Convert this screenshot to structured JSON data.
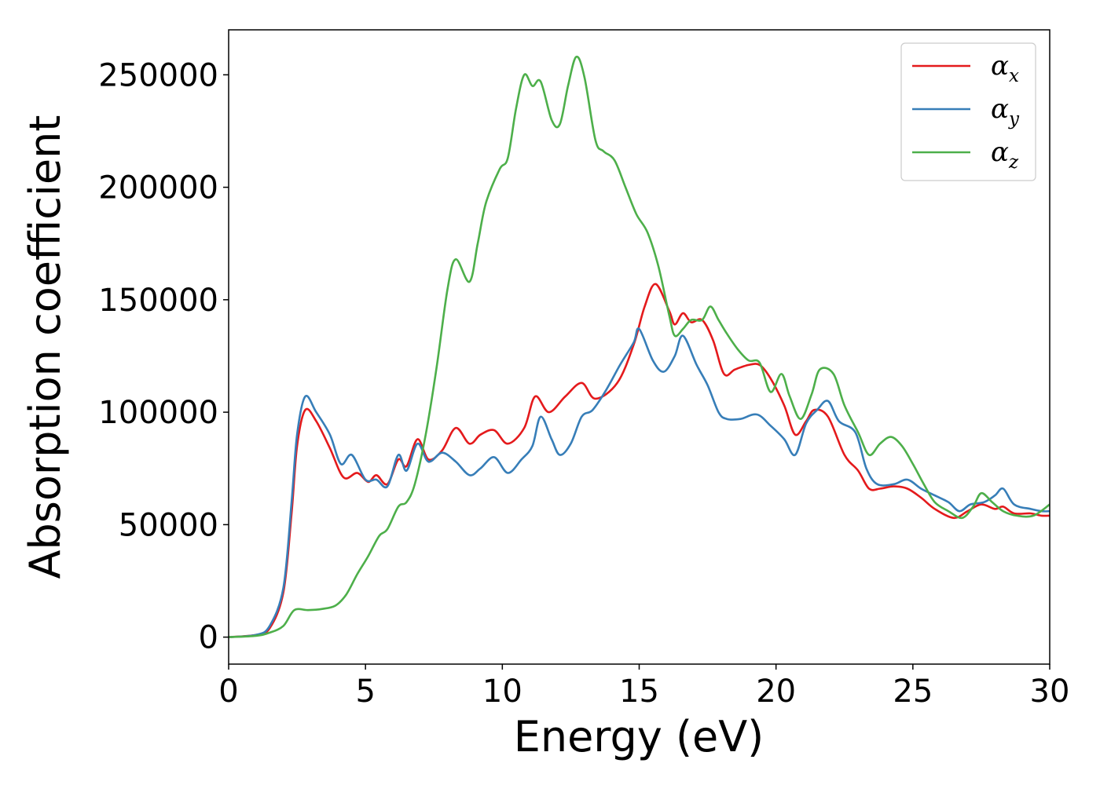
{
  "chart_data": {
    "type": "line",
    "title": "",
    "xlabel": "Energy (eV)",
    "ylabel": "Absorption coefficient",
    "xlim": [
      0,
      30
    ],
    "ylim": [
      -12000,
      270000
    ],
    "xticks": [
      0,
      5,
      10,
      15,
      20,
      25,
      30
    ],
    "xtick_labels": [
      "0",
      "5",
      "10",
      "15",
      "20",
      "25",
      "30"
    ],
    "yticks": [
      0,
      50000,
      100000,
      150000,
      200000,
      250000
    ],
    "ytick_labels": [
      "0",
      "50000",
      "100000",
      "150000",
      "200000",
      "250000"
    ],
    "grid": false,
    "legend": {
      "position": "top-right",
      "entries": [
        {
          "series_index": 0,
          "symbol": "α",
          "subscript": "x"
        },
        {
          "series_index": 1,
          "symbol": "α",
          "subscript": "y"
        },
        {
          "series_index": 2,
          "symbol": "α",
          "subscript": "z"
        }
      ]
    },
    "series": [
      {
        "name": "α_x",
        "color": "#e41a1c",
        "points": [
          [
            0,
            0
          ],
          [
            1,
            1000
          ],
          [
            1.5,
            4000
          ],
          [
            2,
            20000
          ],
          [
            2.3,
            55000
          ],
          [
            2.5,
            85000
          ],
          [
            2.8,
            101000
          ],
          [
            3.2,
            96000
          ],
          [
            3.7,
            84000
          ],
          [
            4.2,
            71000
          ],
          [
            4.7,
            73000
          ],
          [
            5.1,
            69000
          ],
          [
            5.4,
            72000
          ],
          [
            5.8,
            68000
          ],
          [
            6.2,
            79000
          ],
          [
            6.5,
            76000
          ],
          [
            6.9,
            88000
          ],
          [
            7.3,
            79000
          ],
          [
            7.8,
            83000
          ],
          [
            8.3,
            93000
          ],
          [
            8.8,
            86000
          ],
          [
            9.2,
            90000
          ],
          [
            9.7,
            92000
          ],
          [
            10.2,
            86000
          ],
          [
            10.8,
            93000
          ],
          [
            11.2,
            107000
          ],
          [
            11.7,
            100000
          ],
          [
            12.3,
            107000
          ],
          [
            12.9,
            113000
          ],
          [
            13.4,
            106000
          ],
          [
            14.2,
            113000
          ],
          [
            14.8,
            130000
          ],
          [
            15.2,
            147000
          ],
          [
            15.6,
            157000
          ],
          [
            16.1,
            145000
          ],
          [
            16.3,
            139000
          ],
          [
            16.6,
            144000
          ],
          [
            16.9,
            140000
          ],
          [
            17.3,
            141000
          ],
          [
            17.7,
            132000
          ],
          [
            18.1,
            117000
          ],
          [
            18.5,
            119000
          ],
          [
            19,
            121000
          ],
          [
            19.4,
            121000
          ],
          [
            19.8,
            115000
          ],
          [
            20.3,
            103000
          ],
          [
            20.7,
            90000
          ],
          [
            21.1,
            96000
          ],
          [
            21.4,
            101000
          ],
          [
            21.9,
            98000
          ],
          [
            22.5,
            81000
          ],
          [
            23,
            74000
          ],
          [
            23.4,
            66000
          ],
          [
            23.8,
            66000
          ],
          [
            24.3,
            67000
          ],
          [
            24.8,
            66000
          ],
          [
            25.3,
            62000
          ],
          [
            25.8,
            57000
          ],
          [
            26.5,
            53000
          ],
          [
            27,
            56000
          ],
          [
            27.5,
            59000
          ],
          [
            28,
            57000
          ],
          [
            28.3,
            58000
          ],
          [
            28.7,
            55000
          ],
          [
            29.3,
            55000
          ],
          [
            29.7,
            54000
          ],
          [
            30,
            54000
          ]
        ]
      },
      {
        "name": "α_y",
        "color": "#377eb8",
        "points": [
          [
            0,
            0
          ],
          [
            1,
            1000
          ],
          [
            1.5,
            5000
          ],
          [
            2,
            22000
          ],
          [
            2.3,
            60000
          ],
          [
            2.5,
            90000
          ],
          [
            2.8,
            107000
          ],
          [
            3.2,
            100000
          ],
          [
            3.7,
            90000
          ],
          [
            4.1,
            77000
          ],
          [
            4.5,
            81000
          ],
          [
            5,
            70000
          ],
          [
            5.4,
            70000
          ],
          [
            5.8,
            67000
          ],
          [
            6.2,
            81000
          ],
          [
            6.5,
            74000
          ],
          [
            6.9,
            86000
          ],
          [
            7.3,
            78000
          ],
          [
            7.8,
            82000
          ],
          [
            8.3,
            78000
          ],
          [
            8.8,
            72000
          ],
          [
            9.2,
            75000
          ],
          [
            9.7,
            80000
          ],
          [
            10.2,
            73000
          ],
          [
            10.7,
            79000
          ],
          [
            11.1,
            85000
          ],
          [
            11.4,
            98000
          ],
          [
            11.8,
            88000
          ],
          [
            12.1,
            81000
          ],
          [
            12.5,
            86000
          ],
          [
            12.9,
            98000
          ],
          [
            13.3,
            101000
          ],
          [
            13.8,
            110000
          ],
          [
            14.3,
            121000
          ],
          [
            14.8,
            131000
          ],
          [
            15,
            137000
          ],
          [
            15.5,
            123000
          ],
          [
            15.9,
            118000
          ],
          [
            16.3,
            125000
          ],
          [
            16.6,
            134000
          ],
          [
            17.1,
            121000
          ],
          [
            17.5,
            112000
          ],
          [
            17.9,
            100000
          ],
          [
            18.2,
            97000
          ],
          [
            18.7,
            97000
          ],
          [
            19.3,
            99000
          ],
          [
            19.8,
            94000
          ],
          [
            20.3,
            88000
          ],
          [
            20.7,
            81000
          ],
          [
            21.1,
            95000
          ],
          [
            21.5,
            101000
          ],
          [
            21.9,
            105000
          ],
          [
            22.3,
            96000
          ],
          [
            22.9,
            91000
          ],
          [
            23.3,
            75000
          ],
          [
            23.7,
            68000
          ],
          [
            24.3,
            68000
          ],
          [
            24.8,
            70000
          ],
          [
            25.3,
            66000
          ],
          [
            25.8,
            63000
          ],
          [
            26.3,
            60000
          ],
          [
            26.7,
            56000
          ],
          [
            27.1,
            59000
          ],
          [
            27.6,
            60000
          ],
          [
            28,
            63000
          ],
          [
            28.3,
            66000
          ],
          [
            28.7,
            59000
          ],
          [
            29.3,
            57000
          ],
          [
            29.7,
            56000
          ],
          [
            30,
            56000
          ]
        ]
      },
      {
        "name": "α_z",
        "color": "#4daf4a",
        "points": [
          [
            0,
            0
          ],
          [
            1,
            600
          ],
          [
            1.5,
            2000
          ],
          [
            2,
            5000
          ],
          [
            2.4,
            12000
          ],
          [
            2.9,
            12000
          ],
          [
            3.4,
            12500
          ],
          [
            3.9,
            14000
          ],
          [
            4.3,
            19000
          ],
          [
            4.7,
            28000
          ],
          [
            5.1,
            36000
          ],
          [
            5.5,
            45000
          ],
          [
            5.8,
            48000
          ],
          [
            6.2,
            58000
          ],
          [
            6.5,
            60000
          ],
          [
            6.8,
            68000
          ],
          [
            7.2,
            90000
          ],
          [
            7.6,
            120000
          ],
          [
            8,
            155000
          ],
          [
            8.3,
            168000
          ],
          [
            8.8,
            158000
          ],
          [
            9.1,
            175000
          ],
          [
            9.4,
            193000
          ],
          [
            9.9,
            208000
          ],
          [
            10.2,
            213000
          ],
          [
            10.5,
            235000
          ],
          [
            10.8,
            250000
          ],
          [
            11.1,
            245000
          ],
          [
            11.4,
            247000
          ],
          [
            11.8,
            230000
          ],
          [
            12.1,
            228000
          ],
          [
            12.4,
            245000
          ],
          [
            12.7,
            258000
          ],
          [
            13,
            249000
          ],
          [
            13.4,
            221000
          ],
          [
            13.7,
            216000
          ],
          [
            14.1,
            212000
          ],
          [
            14.5,
            200000
          ],
          [
            14.9,
            188000
          ],
          [
            15.3,
            180000
          ],
          [
            15.7,
            165000
          ],
          [
            16.1,
            143000
          ],
          [
            16.3,
            134000
          ],
          [
            16.6,
            137000
          ],
          [
            16.9,
            141000
          ],
          [
            17.3,
            141000
          ],
          [
            17.6,
            147000
          ],
          [
            17.9,
            141000
          ],
          [
            18.2,
            135000
          ],
          [
            18.6,
            128000
          ],
          [
            19,
            123000
          ],
          [
            19.4,
            122000
          ],
          [
            19.8,
            109000
          ],
          [
            20.2,
            117000
          ],
          [
            20.5,
            107000
          ],
          [
            20.9,
            97000
          ],
          [
            21.3,
            108000
          ],
          [
            21.6,
            119000
          ],
          [
            22.1,
            117000
          ],
          [
            22.5,
            103000
          ],
          [
            23,
            91000
          ],
          [
            23.4,
            81000
          ],
          [
            23.8,
            86000
          ],
          [
            24.2,
            89000
          ],
          [
            24.6,
            85000
          ],
          [
            25,
            77000
          ],
          [
            25.4,
            68000
          ],
          [
            25.8,
            60000
          ],
          [
            26.3,
            56000
          ],
          [
            26.8,
            53000
          ],
          [
            27.2,
            58000
          ],
          [
            27.5,
            64000
          ],
          [
            27.9,
            60000
          ],
          [
            28.3,
            56000
          ],
          [
            28.8,
            54000
          ],
          [
            29.4,
            54000
          ],
          [
            30,
            59000
          ]
        ]
      }
    ]
  }
}
